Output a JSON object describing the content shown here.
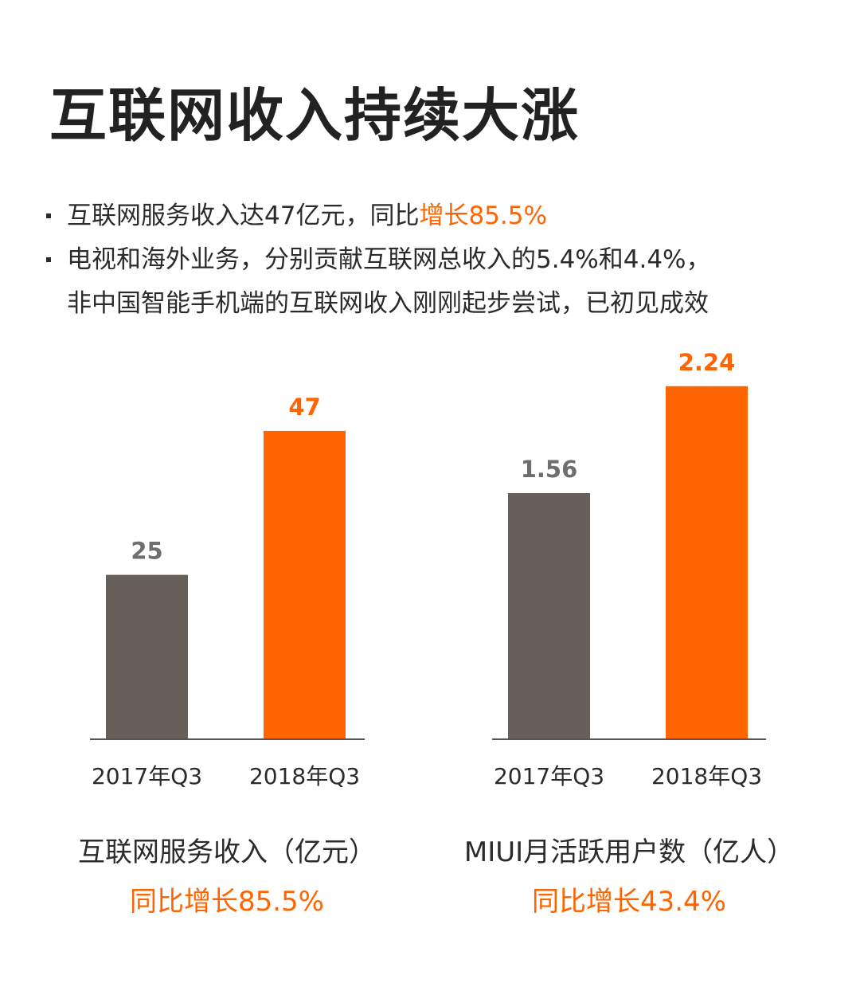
{
  "title": "互联网收入持续大涨",
  "bullets": [
    {
      "lines": [
        {
          "text": "互联网服务收入达47亿元，同比",
          "accent": "增长85.5%"
        }
      ]
    },
    {
      "lines": [
        {
          "text": "电视和海外业务，分别贡献互联网总收入的5.4%和4.4%，",
          "accent": ""
        },
        {
          "text": "非中国智能手机端的互联网收入刚刚起步尝试，已初见成效",
          "accent": ""
        }
      ]
    }
  ],
  "colors": {
    "accent": "#ff6400",
    "bar_gray": "#67605a",
    "axis": "#555555"
  },
  "chart_data": [
    {
      "type": "bar",
      "categories": [
        "2017年Q3",
        "2018年Q3"
      ],
      "values": [
        25,
        47
      ],
      "value_labels": [
        "25",
        "47"
      ],
      "bar_colors": [
        "#67605a",
        "#ff6400"
      ],
      "label_colors": [
        "#6e6e6e",
        "#ff6400"
      ],
      "ylim": [
        0,
        56
      ],
      "caption": "互联网服务收入（亿元）",
      "growth": "同比增长85.5%"
    },
    {
      "type": "bar",
      "categories": [
        "2017年Q3",
        "2018年Q3"
      ],
      "values": [
        1.56,
        2.24
      ],
      "value_labels": [
        "1.56",
        "2.24"
      ],
      "bar_colors": [
        "#67605a",
        "#ff6400"
      ],
      "label_colors": [
        "#6e6e6e",
        "#ff6400"
      ],
      "ylim": [
        0,
        2.33
      ],
      "caption": "MIUI月活跃用户数（亿人）",
      "growth": "同比增长43.4%"
    }
  ]
}
